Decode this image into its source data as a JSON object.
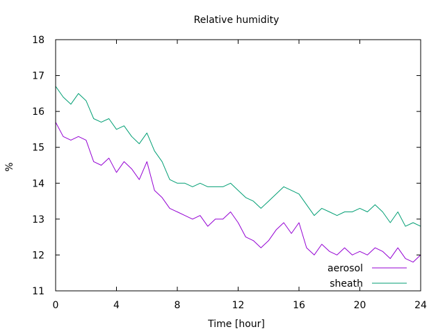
{
  "chart_data": {
    "type": "line",
    "title": "Relative humidity",
    "xlabel": "Time [hour]",
    "ylabel": "%",
    "xlim": [
      0,
      24
    ],
    "ylim": [
      11,
      18
    ],
    "x_ticks": [
      0,
      4,
      8,
      12,
      16,
      20,
      24
    ],
    "y_ticks": [
      11,
      12,
      13,
      14,
      15,
      16,
      17,
      18
    ],
    "grid": false,
    "legend": "bottom-right",
    "x": [
      0.0,
      0.5,
      1.0,
      1.5,
      2.0,
      2.5,
      3.0,
      3.5,
      4.0,
      4.5,
      5.0,
      5.5,
      6.0,
      6.5,
      7.0,
      7.5,
      8.0,
      8.5,
      9.0,
      9.5,
      10.0,
      10.5,
      11.0,
      11.5,
      12.0,
      12.5,
      13.0,
      13.5,
      14.0,
      14.5,
      15.0,
      15.5,
      16.0,
      16.5,
      17.0,
      17.5,
      18.0,
      18.5,
      19.0,
      19.5,
      20.0,
      20.5,
      21.0,
      21.5,
      22.0,
      22.5,
      23.0,
      23.5,
      24.0
    ],
    "series": [
      {
        "name": "aerosol",
        "color": "#9400d3",
        "values": [
          15.7,
          15.3,
          15.2,
          15.3,
          15.2,
          14.6,
          14.5,
          14.7,
          14.3,
          14.6,
          14.4,
          14.1,
          14.6,
          13.8,
          13.6,
          13.3,
          13.2,
          13.1,
          13.0,
          13.1,
          12.8,
          13.0,
          13.0,
          13.2,
          12.9,
          12.5,
          12.4,
          12.2,
          12.4,
          12.7,
          12.9,
          12.6,
          12.9,
          12.2,
          12.0,
          12.3,
          12.1,
          12.0,
          12.2,
          12.0,
          12.1,
          12.0,
          12.2,
          12.1,
          11.9,
          12.2,
          11.9,
          11.8,
          12.0
        ]
      },
      {
        "name": "sheath",
        "color": "#009e73",
        "values": [
          16.7,
          16.4,
          16.2,
          16.5,
          16.3,
          15.8,
          15.7,
          15.8,
          15.5,
          15.6,
          15.3,
          15.1,
          15.4,
          14.9,
          14.6,
          14.1,
          14.0,
          14.0,
          13.9,
          14.0,
          13.9,
          13.9,
          13.9,
          14.0,
          13.8,
          13.6,
          13.5,
          13.3,
          13.5,
          13.7,
          13.9,
          13.8,
          13.7,
          13.4,
          13.1,
          13.3,
          13.2,
          13.1,
          13.2,
          13.2,
          13.3,
          13.2,
          13.4,
          13.2,
          12.9,
          13.2,
          12.8,
          12.9,
          12.8
        ]
      }
    ]
  }
}
